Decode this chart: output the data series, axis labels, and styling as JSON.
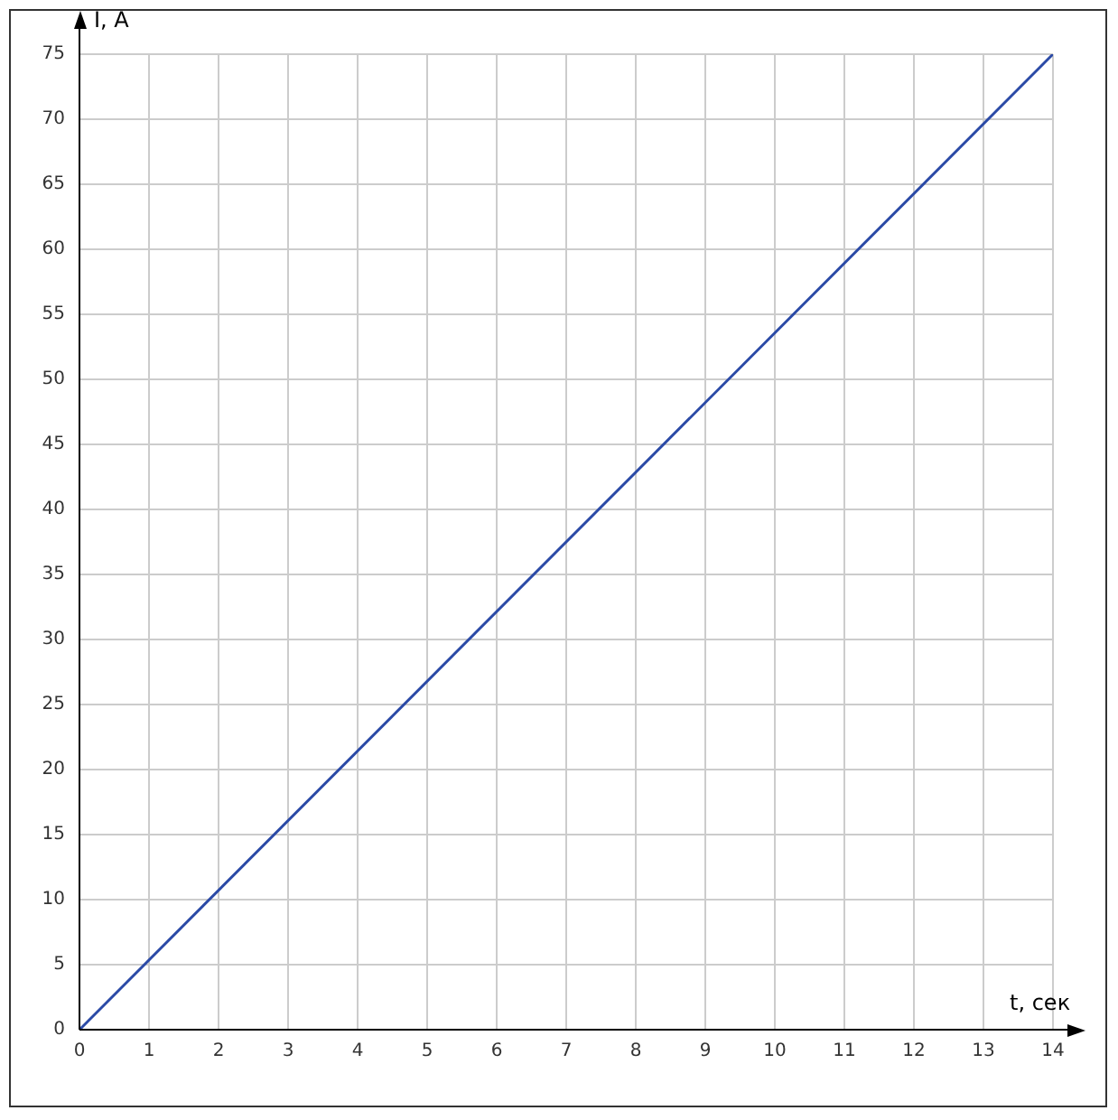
{
  "chart_data": {
    "type": "line",
    "xlabel": "t, сек",
    "ylabel": "I, A",
    "x": [
      0,
      14
    ],
    "values": [
      0,
      75
    ],
    "color": "#2b4aa6",
    "xlim": [
      0,
      14
    ],
    "ylim": [
      0,
      75
    ],
    "xticks": [
      0,
      1,
      2,
      3,
      4,
      5,
      6,
      7,
      8,
      9,
      10,
      11,
      12,
      13,
      14
    ],
    "yticks": [
      0,
      5,
      10,
      15,
      20,
      25,
      30,
      35,
      40,
      45,
      50,
      55,
      60,
      65,
      70,
      75
    ],
    "grid": true,
    "marker": "none"
  }
}
